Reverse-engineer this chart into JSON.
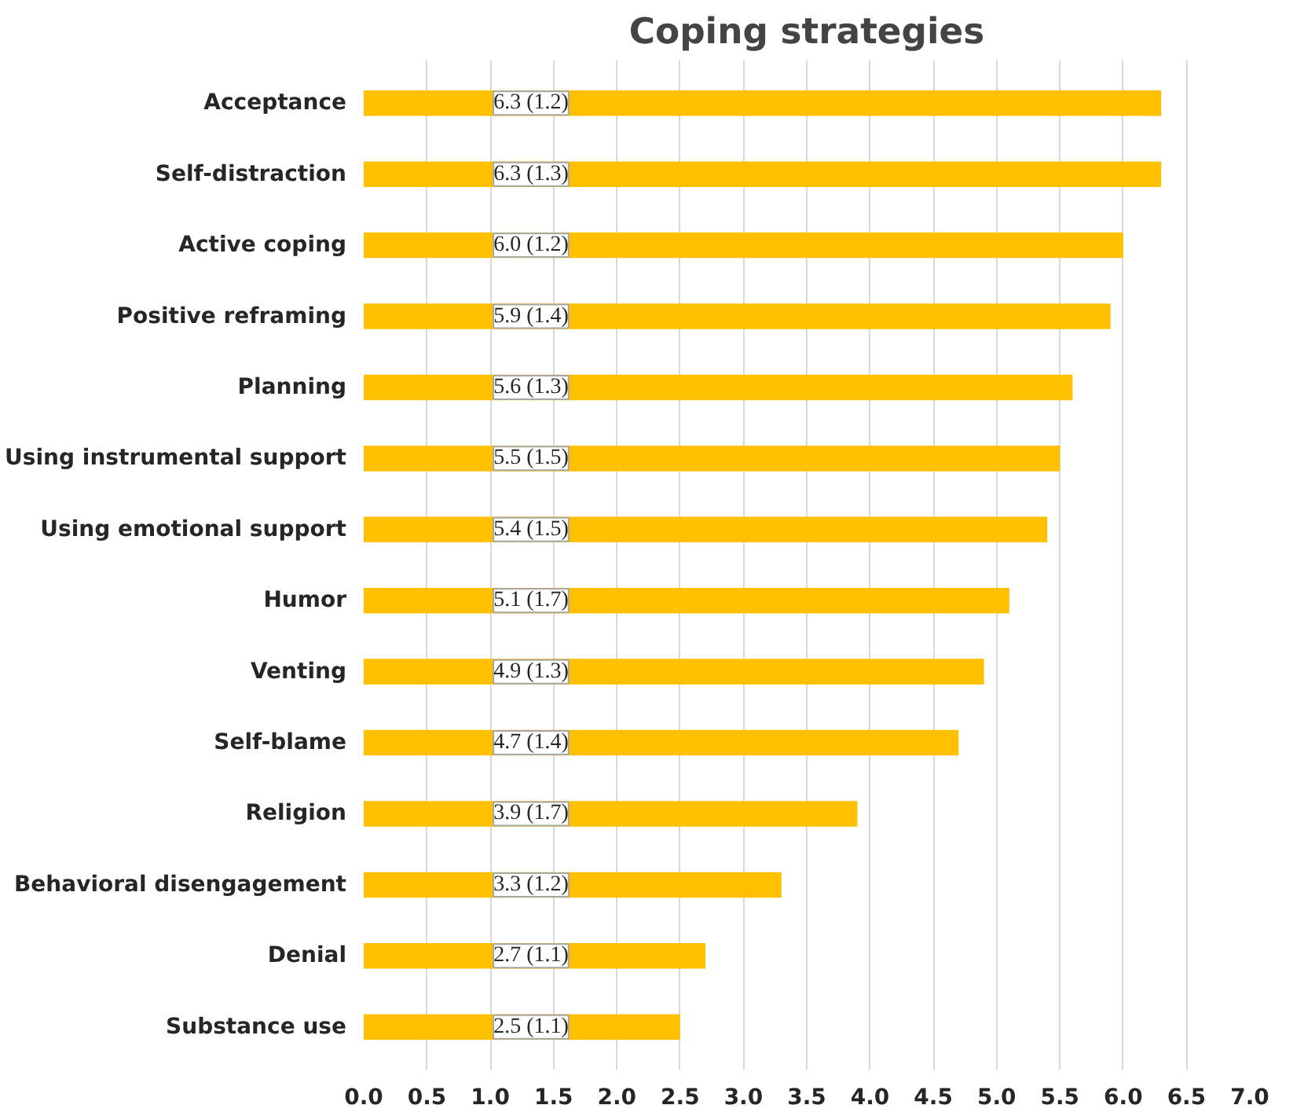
{
  "chart_data": {
    "type": "bar",
    "orientation": "horizontal",
    "title": "Coping strategies",
    "categories": [
      "Acceptance",
      "Self-distraction",
      "Active coping",
      "Positive reframing",
      "Planning",
      "Using instrumental support",
      "Using emotional support",
      "Humor",
      "Venting",
      "Self-blame",
      "Religion",
      "Behavioral disengagement",
      "Denial",
      "Substance use"
    ],
    "values": [
      6.3,
      6.3,
      6.0,
      5.9,
      5.6,
      5.5,
      5.4,
      5.1,
      4.9,
      4.7,
      3.9,
      3.3,
      2.7,
      2.5
    ],
    "value_labels": [
      "6.3 (1.2)",
      "6.3 (1.3)",
      "6.0 (1.2)",
      "5.9 (1.4)",
      "5.6 (1.3)",
      "5.5 (1.5)",
      "5.4 (1.5)",
      "5.1 (1.7)",
      "4.9 (1.3)",
      "4.7 (1.4)",
      "3.9 (1.7)",
      "3.3 (1.2)",
      "2.7 (1.1)",
      "2.5 (1.1)"
    ],
    "color": "#ffc000",
    "xlim": [
      0,
      7.0
    ],
    "xticks": [
      {
        "value": 0,
        "label": "0.0"
      },
      0.5,
      {
        "value": 1,
        "label": "1.0"
      },
      1.5,
      {
        "value": 2,
        "label": "2.0"
      },
      2.5,
      {
        "value": 3,
        "label": "3.0"
      },
      3.5,
      {
        "value": 4,
        "label": "4.0"
      },
      4.5,
      {
        "value": 5,
        "label": "5.0"
      },
      5.5,
      {
        "value": 6,
        "label": "6.0"
      },
      6.5,
      {
        "value": 7,
        "label": "7.0"
      }
    ],
    "grid": "x"
  }
}
